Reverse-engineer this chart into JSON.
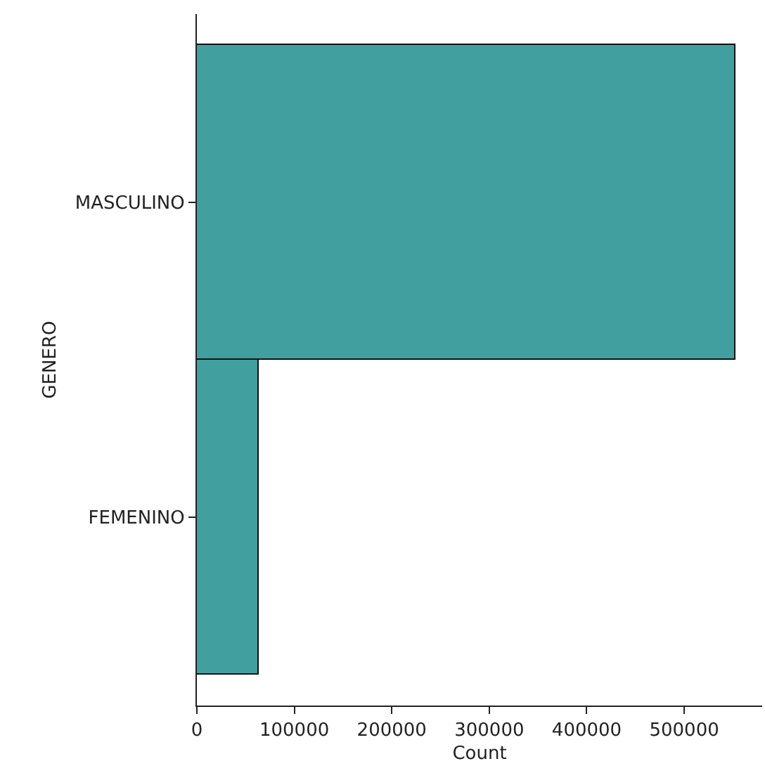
{
  "chart_data": {
    "type": "bar",
    "orientation": "horizontal",
    "xlabel": "Count",
    "ylabel": "GENERO",
    "categories": [
      "MASCULINO",
      "FEMENINO"
    ],
    "values": [
      552000,
      64000
    ],
    "color": "#41a09f",
    "xlim": [
      0,
      580000
    ],
    "xticks": [
      0,
      100000,
      200000,
      300000,
      400000,
      500000
    ],
    "legend": false
  }
}
